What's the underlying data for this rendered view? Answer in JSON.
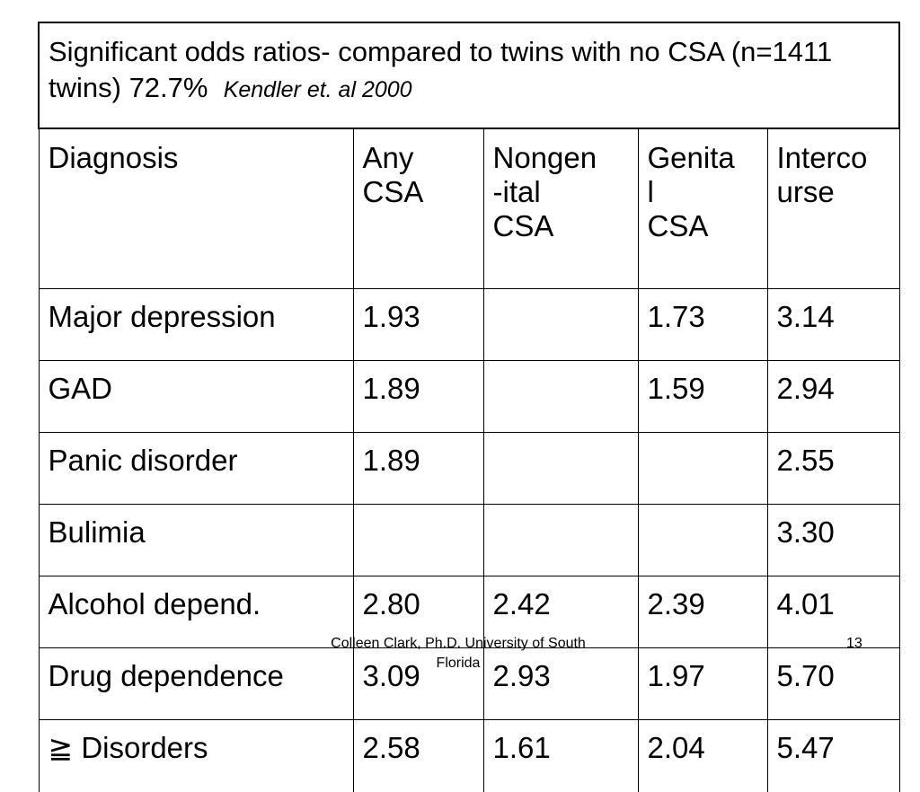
{
  "title": {
    "text": "Significant odds ratios- compared to twins with no CSA (n=1411 twins) 72.7%",
    "reference": "Kendler et. al 2000"
  },
  "headers": [
    [
      "Diagnosis"
    ],
    [
      "Any",
      "CSA"
    ],
    [
      "Nongen",
      "-ital",
      "CSA"
    ],
    [
      "Genita",
      "l",
      "CSA"
    ],
    [
      "Interco",
      "urse"
    ]
  ],
  "rows": [
    [
      "Major depression",
      "1.93",
      "",
      "1.73",
      "3.14"
    ],
    [
      "GAD",
      "1.89",
      "",
      "1.59",
      "2.94"
    ],
    [
      "Panic disorder",
      "1.89",
      "",
      "",
      "2.55"
    ],
    [
      "Bulimia",
      "",
      "",
      "",
      "3.30"
    ],
    [
      "Alcohol depend.",
      "2.80",
      "2.42",
      "2.39",
      "4.01"
    ],
    [
      "Drug dependence",
      "3.09",
      "2.93",
      "1.97",
      "5.70"
    ],
    [
      "≧ Disorders",
      "2.58",
      "1.61",
      "2.04",
      "5.47"
    ]
  ],
  "footer": "Colleen Clark, Ph.D. University of South Florida",
  "slide_number": "13"
}
